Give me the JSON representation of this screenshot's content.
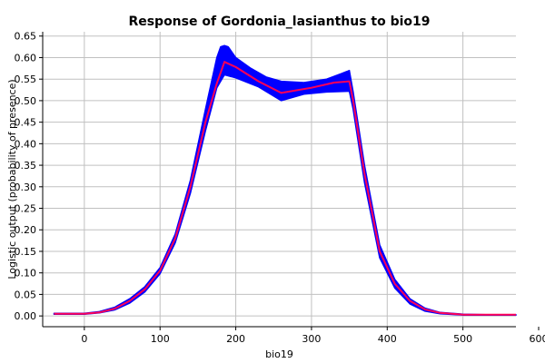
{
  "chart_data": {
    "type": "line",
    "title": "Response of Gordonia_lasianthus to bio19",
    "xlabel": "bio19",
    "ylabel": "Logistic output (probability of presence)",
    "xlim": [
      -55,
      570
    ],
    "ylim": [
      -0.025,
      0.66
    ],
    "xticks": [
      0,
      100,
      200,
      300,
      400,
      500,
      600
    ],
    "xtick_labels": [
      "0",
      "100",
      "200",
      "300",
      "400",
      "500",
      "600"
    ],
    "yticks": [
      0.0,
      0.05,
      0.1,
      0.15,
      0.2,
      0.25,
      0.3,
      0.35,
      0.4,
      0.45,
      0.5,
      0.55,
      0.6,
      0.65
    ],
    "ytick_labels": [
      "0.00",
      "0.05",
      "0.10",
      "0.15",
      "0.20",
      "0.25",
      "0.30",
      "0.35",
      "0.40",
      "0.45",
      "0.50",
      "0.55",
      "0.60",
      "0.65"
    ],
    "grid": true,
    "colors": {
      "band": "#0000ff",
      "mean": "#ff0055",
      "grid": "#c0c0c0",
      "axis": "#000000"
    },
    "series": [
      {
        "role": "mean",
        "x": [
          -40,
          0,
          20,
          40,
          60,
          80,
          100,
          120,
          140,
          160,
          175,
          185,
          200,
          230,
          260,
          300,
          330,
          350,
          355,
          370,
          390,
          410,
          430,
          450,
          470,
          500,
          530,
          570
        ],
        "y": [
          0.005,
          0.005,
          0.008,
          0.017,
          0.035,
          0.062,
          0.105,
          0.18,
          0.3,
          0.45,
          0.54,
          0.59,
          0.578,
          0.545,
          0.518,
          0.53,
          0.542,
          0.545,
          0.5,
          0.33,
          0.15,
          0.075,
          0.035,
          0.015,
          0.007,
          0.003,
          0.003,
          0.003
        ]
      },
      {
        "role": "band_upper",
        "x": [
          -40,
          0,
          20,
          40,
          60,
          80,
          100,
          120,
          140,
          160,
          175,
          180,
          185,
          190,
          200,
          220,
          240,
          260,
          290,
          320,
          340,
          350,
          355,
          370,
          390,
          410,
          430,
          450,
          470,
          500,
          530,
          570
        ],
        "y": [
          0.006,
          0.006,
          0.01,
          0.02,
          0.04,
          0.068,
          0.112,
          0.19,
          0.315,
          0.48,
          0.6,
          0.625,
          0.628,
          0.625,
          0.6,
          0.575,
          0.555,
          0.545,
          0.542,
          0.55,
          0.563,
          0.57,
          0.52,
          0.35,
          0.165,
          0.085,
          0.04,
          0.018,
          0.008,
          0.004,
          0.003,
          0.003
        ]
      },
      {
        "role": "band_lower",
        "x": [
          -40,
          0,
          20,
          40,
          60,
          80,
          100,
          120,
          140,
          160,
          175,
          185,
          200,
          230,
          260,
          290,
          320,
          350,
          355,
          370,
          390,
          410,
          430,
          450,
          470,
          500,
          530,
          570
        ],
        "y": [
          0.004,
          0.004,
          0.007,
          0.014,
          0.03,
          0.056,
          0.098,
          0.17,
          0.285,
          0.43,
          0.53,
          0.56,
          0.553,
          0.532,
          0.5,
          0.515,
          0.52,
          0.522,
          0.48,
          0.31,
          0.135,
          0.065,
          0.028,
          0.011,
          0.005,
          0.002,
          0.002,
          0.002
        ]
      }
    ]
  }
}
